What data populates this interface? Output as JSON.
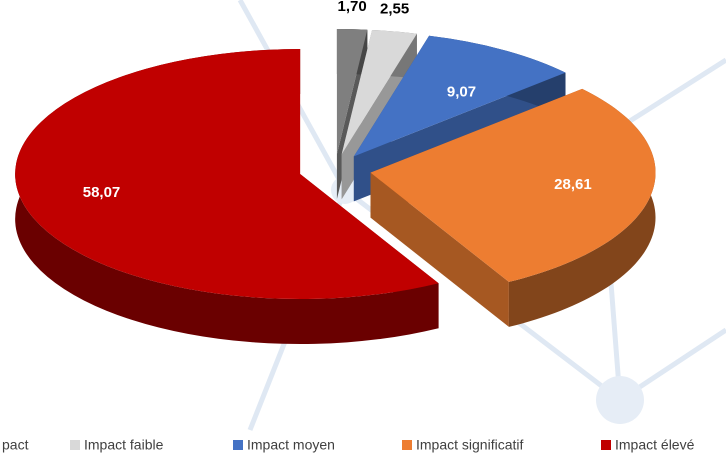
{
  "chart_data": {
    "type": "pie3d",
    "series": [
      {
        "name": "pact",
        "color": "#7f7f7f",
        "values": [
          1.7
        ],
        "value_labels": [
          "1,70"
        ]
      },
      {
        "name": "Impact faible",
        "color": "#d9d9d9",
        "values": [
          2.55
        ],
        "value_labels": [
          "2,55"
        ]
      },
      {
        "name": "Impact moyen",
        "color": "#4472c4",
        "values": [
          9.07
        ],
        "value_labels": [
          "9,07"
        ]
      },
      {
        "name": "Impact significatif",
        "color": "#ed7d31",
        "values": [
          28.61
        ],
        "value_labels": [
          "28,61"
        ]
      },
      {
        "name": "Impact élevé",
        "color": "#c00000",
        "values": [
          58.07
        ],
        "value_labels": [
          "58,07"
        ]
      }
    ],
    "legend": "bottom"
  }
}
